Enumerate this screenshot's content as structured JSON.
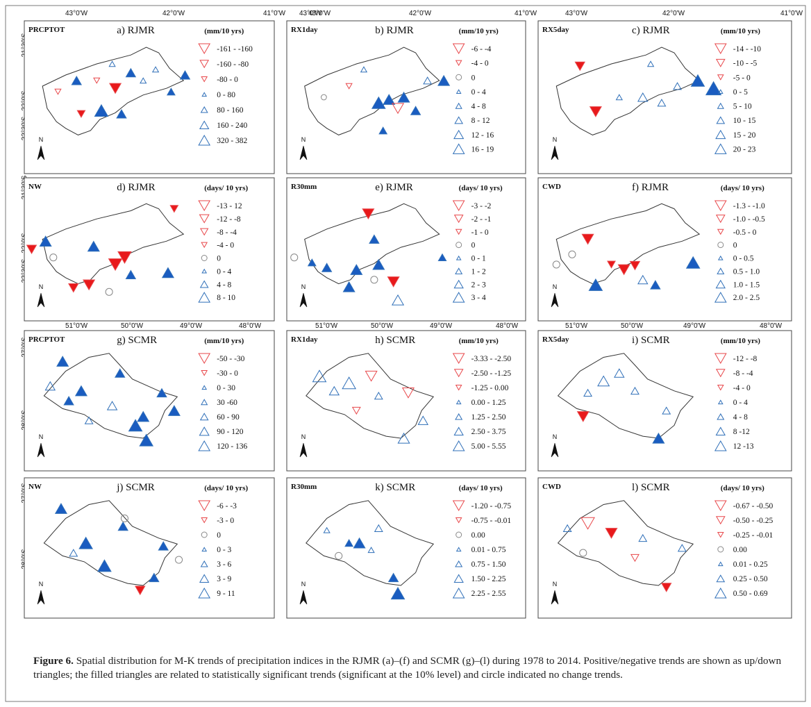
{
  "figure": {
    "label": "Figure 6.",
    "caption": "Spatial distribution for M-K trends of precipitation indices in the RJMR (a)–(f) and SCMR (g)–(l) during 1978 to 2014. Positive/negative trends are shown as up/down triangles; the filled triangles are related to statistically significant trends (significant at the 10% level) and circle indicated no change trends."
  },
  "colors": {
    "negative": "#e8474a",
    "positive": "#2f6fb8",
    "neutral": "#888888",
    "sig_fill_neg": "#e8191b",
    "sig_fill_pos": "#1a5cc0"
  },
  "rjmr_axes": {
    "lon": [
      "43°0'W",
      "42°0'W",
      "41°0'W"
    ],
    "lat": [
      "21°30'S",
      "22°0'S",
      "22°30'S"
    ]
  },
  "scmr_axes": {
    "lon": [
      "51°0'W",
      "50°0'W",
      "49°0'W",
      "48°0'W"
    ],
    "lat": [
      "27°0'S",
      "28°0'S"
    ]
  },
  "north_label": "N",
  "panels": [
    {
      "index": "PRCPTOT",
      "title": "a) RJMR",
      "unit": "(mm/10 yrs)",
      "legend": [
        [
          "down",
          "-161 - -160"
        ],
        [
          "down",
          "-160 - -80"
        ],
        [
          "down",
          "-80 - 0"
        ],
        [
          "up",
          "0 - 80"
        ],
        [
          "up",
          "80 - 160"
        ],
        [
          "up",
          "160 - 240"
        ],
        [
          "up",
          "320 - 382"
        ]
      ]
    },
    {
      "index": "RX1day",
      "title": "b) RJMR",
      "unit": "(mm/10 yrs)",
      "legend": [
        [
          "down",
          "-6 - -4"
        ],
        [
          "down",
          "-4 - 0"
        ],
        [
          "circle",
          "0"
        ],
        [
          "up",
          "0 - 4"
        ],
        [
          "up",
          "4 - 8"
        ],
        [
          "up",
          "8 - 12"
        ],
        [
          "up",
          "12 - 16"
        ],
        [
          "up",
          "16 - 19"
        ]
      ]
    },
    {
      "index": "RX5day",
      "title": "c) RJMR",
      "unit": "(mm/10 yrs)",
      "legend": [
        [
          "down",
          "-14 - -10"
        ],
        [
          "down",
          "-10 - -5"
        ],
        [
          "down",
          "-5 - 0"
        ],
        [
          "up",
          "0 - 5"
        ],
        [
          "up",
          "5 - 10"
        ],
        [
          "up",
          "10 - 15"
        ],
        [
          "up",
          "15 - 20"
        ],
        [
          "up",
          "20 - 23"
        ]
      ]
    },
    {
      "index": "NW",
      "title": "d) RJMR",
      "unit": "(days/ 10 yrs)",
      "legend": [
        [
          "down",
          "-13 - 12"
        ],
        [
          "down",
          "-12 - -8"
        ],
        [
          "down",
          "-8 - -4"
        ],
        [
          "down",
          "-4 - 0"
        ],
        [
          "circle",
          "0"
        ],
        [
          "up",
          "0 - 4"
        ],
        [
          "up",
          "4 - 8"
        ],
        [
          "up",
          "8 - 10"
        ]
      ]
    },
    {
      "index": "R30mm",
      "title": "e) RJMR",
      "unit": "(days/ 10 yrs)",
      "legend": [
        [
          "down",
          "-3 - -2"
        ],
        [
          "down",
          "-2 - -1"
        ],
        [
          "down",
          "-1 - 0"
        ],
        [
          "circle",
          "0"
        ],
        [
          "up",
          "0 - 1"
        ],
        [
          "up",
          "1 - 2"
        ],
        [
          "up",
          "2 - 3"
        ],
        [
          "up",
          "3 - 4"
        ]
      ]
    },
    {
      "index": "CWD",
      "title": "f) RJMR",
      "unit": "(days/ 10 yrs)",
      "legend": [
        [
          "down",
          "-1.3 - -1.0"
        ],
        [
          "down",
          "-1.0 - -0.5"
        ],
        [
          "down",
          "-0.5 - 0"
        ],
        [
          "circle",
          "0"
        ],
        [
          "up",
          "0 - 0.5"
        ],
        [
          "up",
          "0.5 - 1.0"
        ],
        [
          "up",
          "1.0 - 1.5"
        ],
        [
          "up",
          "2.0 - 2.5"
        ]
      ]
    },
    {
      "index": "PRCPTOT",
      "title": "g) SCMR",
      "unit": "(mm/10 yrs)",
      "legend": [
        [
          "down",
          "-50 - -30"
        ],
        [
          "down",
          "-30 - 0"
        ],
        [
          "up",
          "0 - 30"
        ],
        [
          "up",
          "30 -60"
        ],
        [
          "up",
          "60 - 90"
        ],
        [
          "up",
          "90 - 120"
        ],
        [
          "up",
          "120 - 136"
        ]
      ]
    },
    {
      "index": "RX1day",
      "title": "h) SCMR",
      "unit": "(mm/10 yrs)",
      "legend": [
        [
          "down",
          "-3.33 - -2.50"
        ],
        [
          "down",
          "-2.50 - -1.25"
        ],
        [
          "down",
          "-1.25 - 0.00"
        ],
        [
          "up",
          "0.00 - 1.25"
        ],
        [
          "up",
          "1.25 - 2.50"
        ],
        [
          "up",
          "2.50 - 3.75"
        ],
        [
          "up",
          "5.00 - 5.55"
        ]
      ]
    },
    {
      "index": "RX5day",
      "title": "i) SCMR",
      "unit": "(mm/10 yrs)",
      "legend": [
        [
          "down",
          "-12 - -8"
        ],
        [
          "down",
          "-8 - -4"
        ],
        [
          "down",
          "-4 - 0"
        ],
        [
          "up",
          "0 - 4"
        ],
        [
          "up",
          "4 - 8"
        ],
        [
          "up",
          "8 -12"
        ],
        [
          "up",
          "12 -13"
        ]
      ]
    },
    {
      "index": "NW",
      "title": "j) SCMR",
      "unit": "(days/ 10 yrs)",
      "legend": [
        [
          "down",
          "-6 - -3"
        ],
        [
          "down",
          "-3 - 0"
        ],
        [
          "circle",
          "0"
        ],
        [
          "up",
          "0 - 3"
        ],
        [
          "up",
          "3 - 6"
        ],
        [
          "up",
          "3 - 9"
        ],
        [
          "up",
          "9 - 11"
        ]
      ]
    },
    {
      "index": "R30mm",
      "title": "k) SCMR",
      "unit": "(days/ 10 yrs)",
      "legend": [
        [
          "down",
          "-1.20 - -0.75"
        ],
        [
          "down",
          "-0.75 - -0.01"
        ],
        [
          "circle",
          "0.00"
        ],
        [
          "up",
          "0.01 - 0.75"
        ],
        [
          "up",
          "0.75 - 1.50"
        ],
        [
          "up",
          "1.50 - 2.25"
        ],
        [
          "up",
          "2.25 - 2.55"
        ]
      ]
    },
    {
      "index": "CWD",
      "title": "l) SCMR",
      "unit": "(days/ 10 yrs)",
      "legend": [
        [
          "down",
          "-0.67 - -0.50"
        ],
        [
          "down",
          "-0.50 - -0.25"
        ],
        [
          "down",
          "-0.25 - -0.01"
        ],
        [
          "circle",
          "0.00"
        ],
        [
          "up",
          "0.01 - 0.25"
        ],
        [
          "up",
          "0.25 - 0.50"
        ],
        [
          "up",
          "0.50 - 0.69"
        ]
      ]
    }
  ]
}
